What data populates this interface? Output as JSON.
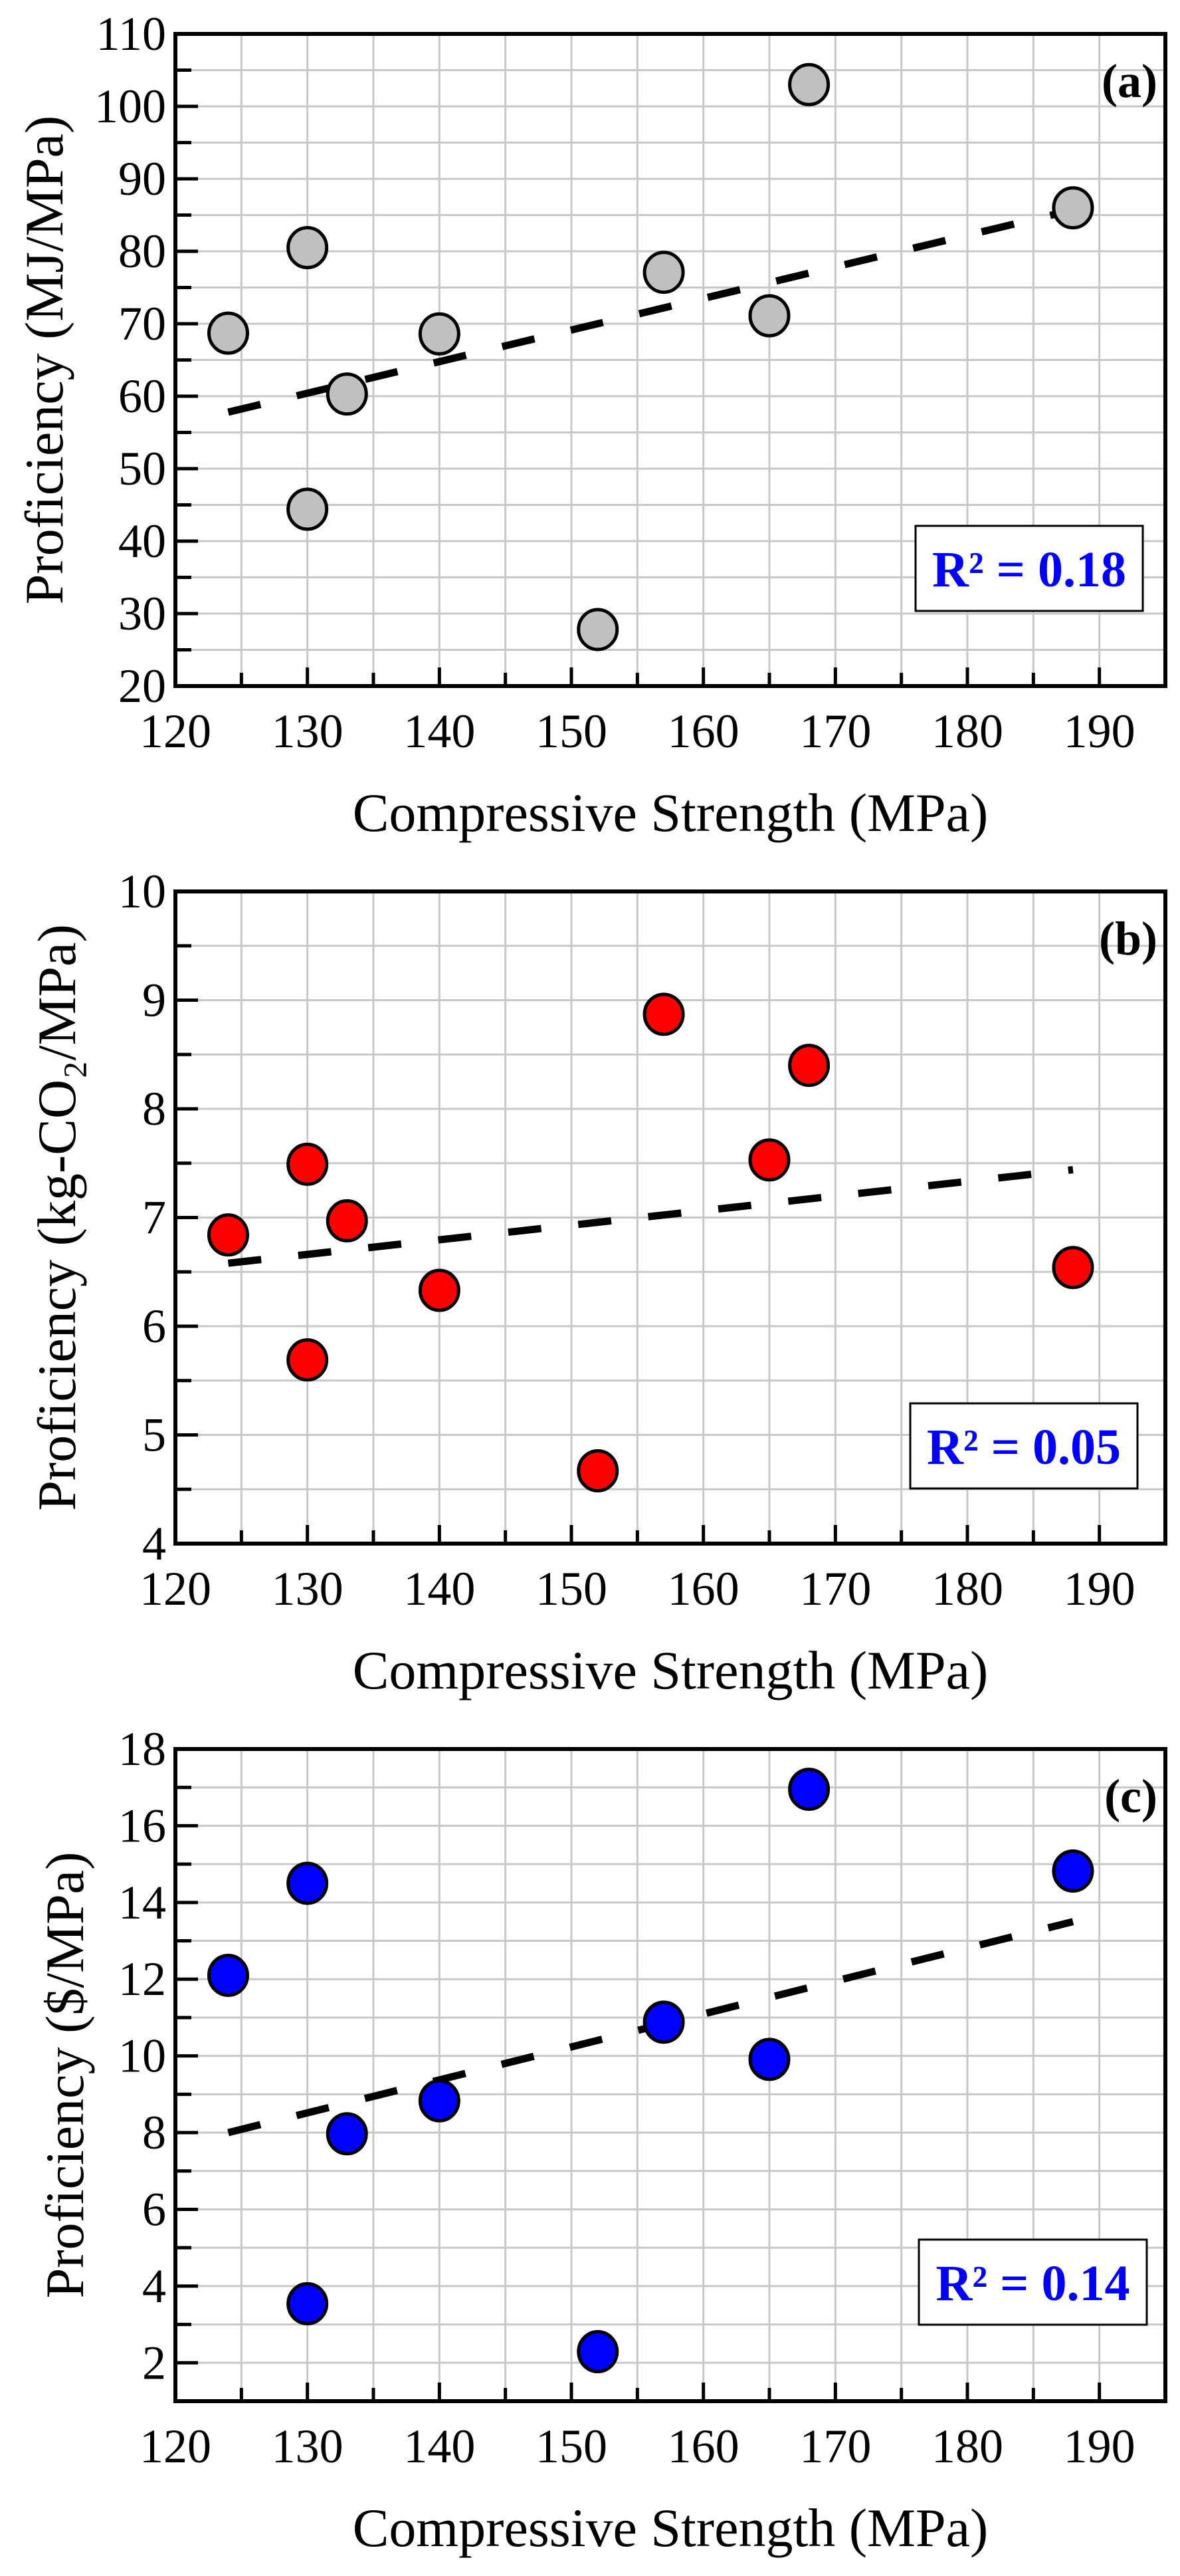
{
  "chart_data": [
    {
      "type": "scatter",
      "panel_label": "(a)",
      "xlabel": "Compressive Strength (MPa)",
      "ylabel": "Proficiency (MJ/MPa)",
      "xlim": [
        120,
        195
      ],
      "ylim": [
        20,
        110
      ],
      "xticks": [
        120,
        130,
        140,
        150,
        160,
        170,
        180,
        190
      ],
      "yticks": [
        20,
        30,
        40,
        50,
        60,
        70,
        80,
        90,
        100,
        110
      ],
      "x_minor_step": 5,
      "y_minor_step": 5,
      "grid": true,
      "marker_color": "#c0c0c0",
      "points": {
        "x": [
          124,
          130,
          130,
          133,
          140,
          152,
          157,
          165,
          168,
          188
        ],
        "y": [
          68.7,
          80.5,
          44.4,
          60.3,
          68.6,
          27.8,
          77.1,
          71.1,
          103.0,
          86.0
        ]
      },
      "trendline": {
        "x": [
          124,
          188
        ],
        "y": [
          57.8,
          85.7
        ],
        "style": "dashed"
      },
      "annotation": "R² = 0.18"
    },
    {
      "type": "scatter",
      "panel_label": "(b)",
      "xlabel": "Compressive Strength (MPa)",
      "ylabel": "Proficiency (kg-CO₂/MPa)",
      "xlim": [
        120,
        195
      ],
      "ylim": [
        4,
        10
      ],
      "xticks": [
        120,
        130,
        140,
        150,
        160,
        170,
        180,
        190
      ],
      "yticks": [
        4,
        5,
        6,
        7,
        8,
        9,
        10
      ],
      "x_minor_step": 5,
      "y_minor_step": 0.5,
      "grid": true,
      "marker_color": "#ff0000",
      "points": {
        "x": [
          124,
          130,
          130,
          133,
          140,
          152,
          157,
          165,
          168,
          188
        ],
        "y": [
          6.84,
          7.49,
          5.69,
          6.97,
          6.33,
          4.67,
          8.87,
          7.53,
          8.4,
          6.54
        ]
      },
      "trendline": {
        "x": [
          124,
          188
        ],
        "y": [
          6.58,
          7.44
        ],
        "style": "dashed"
      },
      "annotation": "R² = 0.05"
    },
    {
      "type": "scatter",
      "panel_label": "(c)",
      "xlabel": "Compressive Strength (MPa)",
      "ylabel": "Proficiency ($/MPa)",
      "xlim": [
        120,
        195
      ],
      "ylim": [
        1,
        18
      ],
      "xticks": [
        120,
        130,
        140,
        150,
        160,
        170,
        180,
        190
      ],
      "yticks": [
        2,
        4,
        6,
        8,
        10,
        12,
        14,
        16,
        18
      ],
      "x_minor_step": 5,
      "y_minor_step": 1,
      "grid": true,
      "marker_color": "#0000ff",
      "points": {
        "x": [
          124,
          130,
          130,
          133,
          140,
          152,
          157,
          165,
          168,
          188
        ],
        "y": [
          12.1,
          14.5,
          3.54,
          7.97,
          8.83,
          2.29,
          10.88,
          9.91,
          16.95,
          14.82
        ]
      },
      "trendline": {
        "x": [
          124,
          188
        ],
        "y": [
          8.0,
          13.5
        ],
        "style": "dashed"
      },
      "annotation": "R² = 0.14"
    }
  ]
}
